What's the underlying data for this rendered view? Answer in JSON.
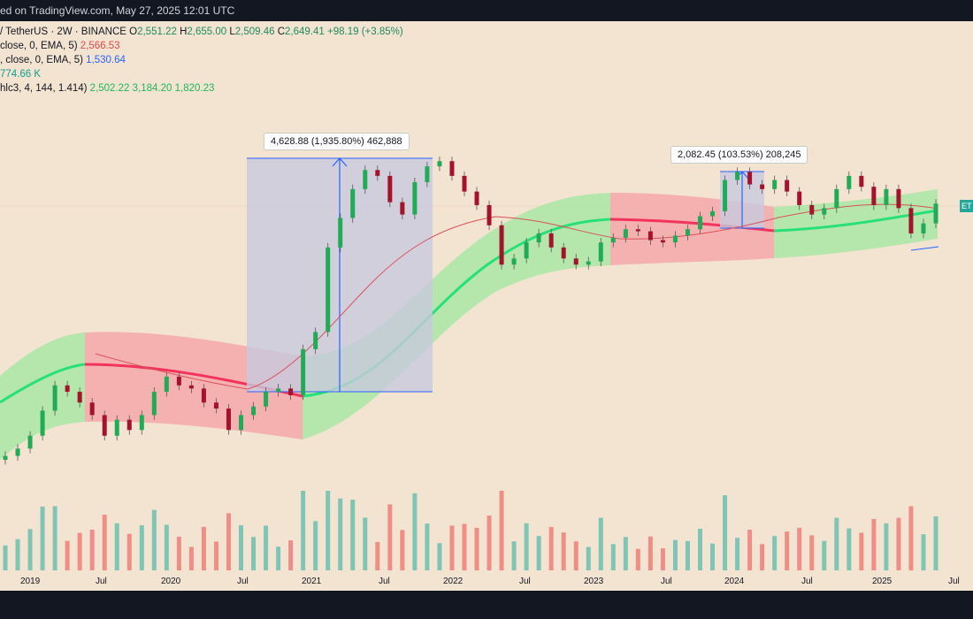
{
  "header": {
    "published": "ed on TradingView.com, May 27, 2025 12:01 UTC"
  },
  "legend": {
    "symbol": "/ TetherUS · 2W · BINANCE",
    "ohlc": {
      "o_label": "O",
      "o": "2,551.22",
      "h_label": "H",
      "h": "2,655.00",
      "l_label": "L",
      "l": "2,509.46",
      "c_label": "C",
      "c": "2,649.41",
      "change": "+98.19 (+3.85%)"
    },
    "ema1": {
      "label": "close, 0, EMA, 5)",
      "value": "2,566.53"
    },
    "ema2": {
      "label": ", close, 0, EMA, 5)",
      "value": "1,530.64"
    },
    "volume": {
      "value": "774.66 K"
    },
    "bands": {
      "label": "hlc3, 4, 144, 1.414)",
      "v1": "2,502.22",
      "v2": "3,184.20",
      "v3": "1,820.23"
    }
  },
  "annotations": [
    {
      "text": "4,628.88 (1,935.80%) 462,888"
    },
    {
      "text": "2,082.45 (103.53%) 208,245"
    }
  ],
  "price_tag": "ET",
  "colors": {
    "up": "#26a69a",
    "down": "#ef5350",
    "candle_up": "#22ab56",
    "candle_down": "#a3132b",
    "band_green": "#8ce59b",
    "band_red": "#f4a3a8",
    "mid_green": "#28e07a",
    "mid_red": "#f2335c",
    "ema_line": "#d9515a",
    "range_box": "#cdd1e6",
    "range_line": "#2962ff",
    "topbar": "#131722",
    "background": "#f3e4d2"
  },
  "chart_data": {
    "type": "candlestick",
    "x_ticks": [
      "2019",
      "Jul",
      "2020",
      "Jul",
      "2021",
      "Jul",
      "2022",
      "Jul",
      "2023",
      "Jul",
      "2024",
      "Jul",
      "2025",
      "Jul"
    ],
    "series": [
      {
        "name": "price",
        "values": [
          100,
          110,
          130,
          180,
          250,
          230,
          200,
          170,
          130,
          160,
          140,
          170,
          230,
          280,
          250,
          240,
          200,
          185,
          140,
          170,
          190,
          230,
          240,
          220,
          400,
          500,
          1500,
          2200,
          3200,
          4100,
          3800,
          2700,
          2300,
          3500,
          4300,
          4600,
          3800,
          3100,
          2600,
          2000,
          1200,
          1300,
          1600,
          1800,
          1500,
          1300,
          1200,
          1250,
          1600,
          1700,
          1900,
          1850,
          1650,
          1600,
          1750,
          1900,
          2250,
          2400,
          3600,
          4000,
          3400,
          3200,
          3600,
          3100,
          2600,
          2300,
          2500,
          3200,
          3800,
          3300,
          2600,
          3200,
          2500,
          1800,
          2050,
          2650
        ]
      }
    ],
    "y_scale": "log",
    "ylim": [
      80,
      5000
    ]
  }
}
